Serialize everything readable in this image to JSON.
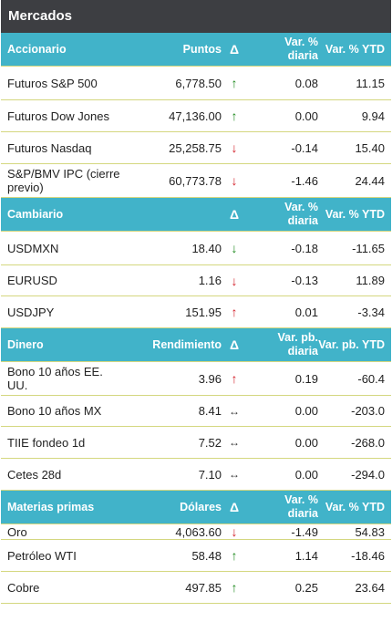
{
  "title": "Mercados",
  "sections": [
    {
      "header": [
        "Accionario",
        "Puntos",
        "Δ",
        "Var. %\ndiaria",
        "Var. % YTD"
      ],
      "rows": [
        {
          "name": "Futuros S&P 500",
          "value": "6,778.50",
          "dir": "up",
          "day": "0.08",
          "ytd": "11.15"
        },
        {
          "name": "Futuros Dow Jones",
          "value": "47,136.00",
          "dir": "up",
          "day": "0.00",
          "ytd": "9.94"
        },
        {
          "name": "Futuros Nasdaq",
          "value": "25,258.75",
          "dir": "down",
          "day": "-0.14",
          "ytd": "15.40"
        },
        {
          "name": "S&P/BMV IPC (cierre previo)",
          "value": "60,773.78",
          "dir": "down",
          "day": "-1.46",
          "ytd": "24.44"
        }
      ]
    },
    {
      "header": [
        "Cambiario",
        "",
        "Δ",
        "Var. %\ndiaria",
        "Var. % YTD"
      ],
      "rows": [
        {
          "name": "USDMXN",
          "value": "18.40",
          "dir": "down-green",
          "day": "-0.18",
          "ytd": "-11.65"
        },
        {
          "name": "EURUSD",
          "value": "1.16",
          "dir": "down",
          "day": "-0.13",
          "ytd": "11.89"
        },
        {
          "name": "USDJPY",
          "value": "151.95",
          "dir": "up-red",
          "day": "0.01",
          "ytd": "-3.34"
        }
      ]
    },
    {
      "header": [
        "Dinero",
        "Rendimiento",
        "Δ",
        "Var. pb.\ndiaria",
        "Var. pb. YTD"
      ],
      "rows": [
        {
          "name": "Bono 10 años EE. UU.",
          "value": "3.96",
          "dir": "up-red",
          "day": "0.19",
          "ytd": "-60.4"
        },
        {
          "name": "Bono 10 años MX",
          "value": "8.41",
          "dir": "flat",
          "day": "0.00",
          "ytd": "-203.0"
        },
        {
          "name": "TIIE fondeo 1d",
          "value": "7.52",
          "dir": "flat",
          "day": "0.00",
          "ytd": "-268.0"
        },
        {
          "name": "Cetes 28d",
          "value": "7.10",
          "dir": "flat",
          "day": "0.00",
          "ytd": "-294.0"
        }
      ]
    },
    {
      "header": [
        "Materias primas",
        "Dólares",
        "Δ",
        "Var. %\ndiaria",
        "Var. % YTD"
      ],
      "rows": [
        {
          "name": "Oro",
          "value": "4,063.60",
          "dir": "down",
          "day": "-1.49",
          "ytd": "54.83"
        },
        {
          "name": "Petróleo WTI",
          "value": "58.48",
          "dir": "up",
          "day": "1.14",
          "ytd": "-18.46"
        },
        {
          "name": "Cobre",
          "value": "497.85",
          "dir": "up",
          "day": "0.25",
          "ytd": "23.64"
        }
      ]
    }
  ],
  "icons": {
    "up": {
      "glyph": "↑",
      "name": "arrow-up-icon",
      "color": "#1e8a1e"
    },
    "up-red": {
      "glyph": "↑",
      "name": "arrow-up-icon",
      "color": "#d4202a"
    },
    "down": {
      "glyph": "↓",
      "name": "arrow-down-icon",
      "color": "#d4202a"
    },
    "down-green": {
      "glyph": "↓",
      "name": "arrow-down-icon",
      "color": "#1e8a1e"
    },
    "flat": {
      "glyph": "↔",
      "name": "arrow-horizontal-icon",
      "color": "#333333"
    }
  },
  "colors": {
    "title_bg": "#3d3e42",
    "header_bg": "#41b3c9",
    "row_border": "#d4d77f"
  }
}
